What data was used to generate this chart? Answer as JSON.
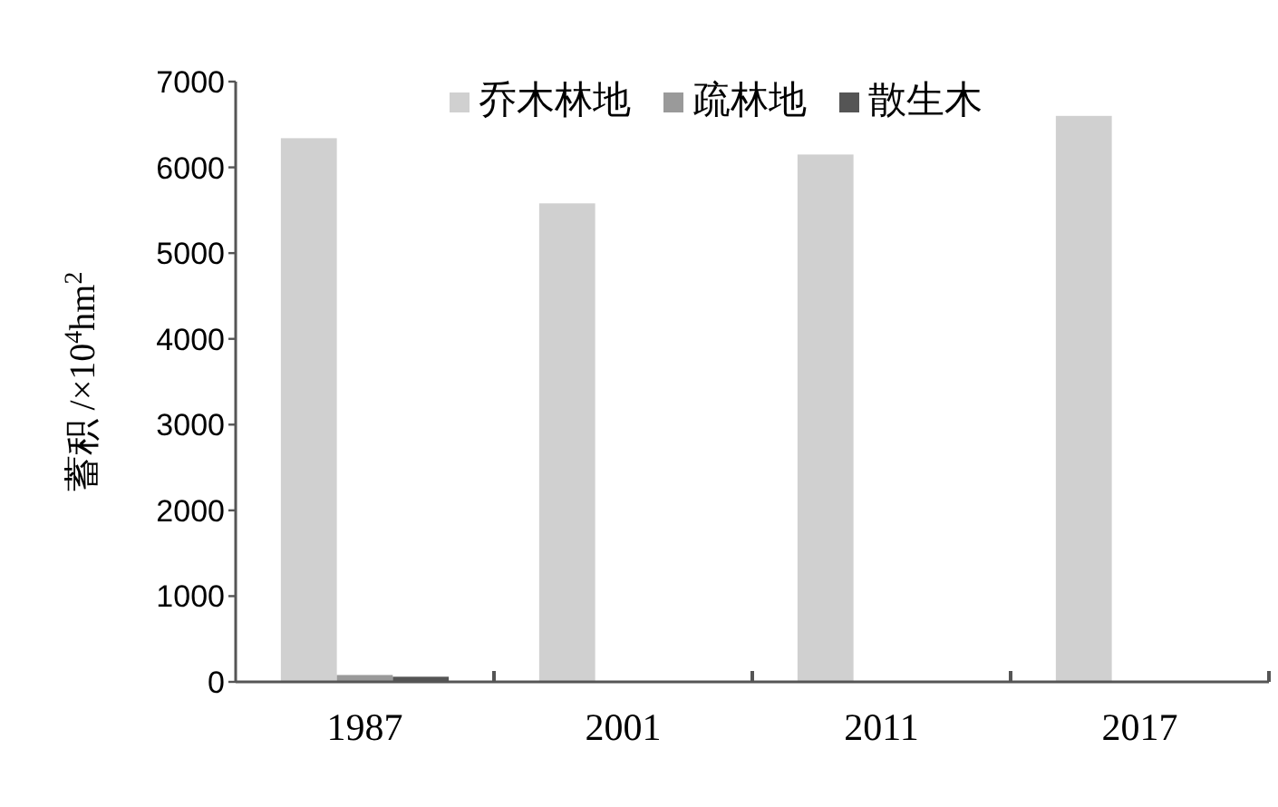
{
  "chart_data": {
    "type": "bar",
    "ylabel": "蓄积 /×10$^{4}$hm$^{2}$",
    "categories": [
      "1987",
      "2001",
      "2011",
      "2017"
    ],
    "series": [
      {
        "name": "乔木林地",
        "color": "#d0d0d0",
        "values": [
          6340,
          5580,
          6150,
          6600
        ]
      },
      {
        "name": "疏林地",
        "color": "#9a9a9a",
        "values": [
          80,
          10,
          0,
          0
        ]
      },
      {
        "name": "散生木",
        "color": "#555555",
        "values": [
          60,
          10,
          0,
          0
        ]
      }
    ],
    "ylim": [
      0,
      7000
    ],
    "yticks": [
      0,
      1000,
      2000,
      3000,
      4000,
      5000,
      6000,
      7000
    ],
    "legend": "top"
  }
}
